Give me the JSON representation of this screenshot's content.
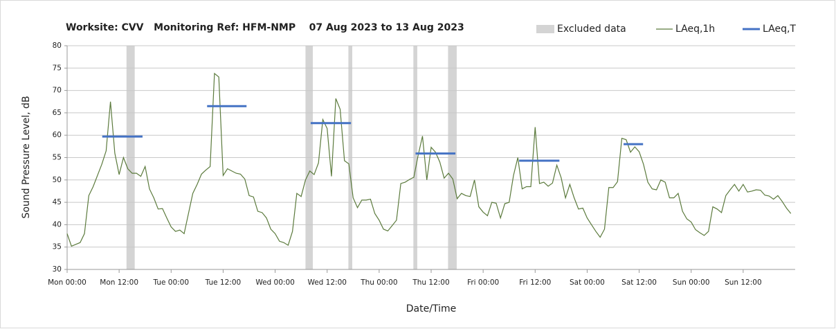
{
  "chart_data": {
    "type": "line",
    "title": "Worksite: CVV   Monitoring Ref: HFM-NMP    07 Aug 2023 to 13 Aug 2023",
    "x_label": "Date/Time",
    "y_label": "Sound Pressure Level, dB",
    "xlim": [
      0,
      168
    ],
    "xticks": [
      {
        "value": 0,
        "label": "Mon 00:00"
      },
      {
        "value": 12,
        "label": "Mon 12:00"
      },
      {
        "value": 24,
        "label": "Tue 00:00"
      },
      {
        "value": 36,
        "label": "Tue 12:00"
      },
      {
        "value": 48,
        "label": "Wed 00:00"
      },
      {
        "value": 60,
        "label": "Wed 12:00"
      },
      {
        "value": 72,
        "label": "Thu 00:00"
      },
      {
        "value": 84,
        "label": "Thu 12:00"
      },
      {
        "value": 96,
        "label": "Fri 00:00"
      },
      {
        "value": 108,
        "label": "Fri 12:00"
      },
      {
        "value": 120,
        "label": "Sat 00:00"
      },
      {
        "value": 132,
        "label": "Sat 12:00"
      },
      {
        "value": 144,
        "label": "Sun 00:00"
      },
      {
        "value": 156,
        "label": "Sun 12:00"
      }
    ],
    "ylim": [
      30,
      80
    ],
    "yticks": [
      30,
      35,
      40,
      45,
      50,
      55,
      60,
      65,
      70,
      75,
      80
    ],
    "grid": true,
    "legend": "top-right",
    "excluded_data": {
      "name": "Excluded data",
      "color": "#d4d4d4",
      "ranges": [
        [
          13.7,
          15.6
        ],
        [
          55,
          56.7
        ],
        [
          64.9,
          65.8
        ],
        [
          79.9,
          80.8
        ],
        [
          87.9,
          89.9
        ]
      ]
    },
    "series": [
      {
        "name": "LAeq,1h",
        "color": "#5b7a3c",
        "x": [
          0,
          1,
          2,
          3,
          4,
          5,
          6,
          7,
          8,
          9,
          10,
          11,
          12,
          13,
          14,
          15,
          16,
          17,
          18,
          19,
          20,
          21,
          22,
          23,
          24,
          25,
          26,
          27,
          28,
          29,
          30,
          31,
          32,
          33,
          34,
          35,
          36,
          37,
          38,
          39,
          40,
          41,
          42,
          43,
          44,
          45,
          46,
          47,
          48,
          49,
          50,
          51,
          52,
          53,
          54,
          55,
          56,
          57,
          58,
          59,
          60,
          61,
          62,
          63,
          64,
          65,
          66,
          67,
          68,
          69,
          70,
          71,
          72,
          73,
          74,
          75,
          76,
          77,
          78,
          79,
          80,
          81,
          82,
          83,
          84,
          85,
          86,
          87,
          88,
          89,
          90,
          91,
          92,
          93,
          94,
          95,
          96,
          97,
          98,
          99,
          100,
          101,
          102,
          103,
          104,
          105,
          106,
          107,
          108,
          109,
          110,
          111,
          112,
          113,
          114,
          115,
          116,
          117,
          118,
          119,
          120,
          121,
          122,
          123,
          124,
          125,
          126,
          127,
          128,
          129,
          130,
          131,
          132,
          133,
          134,
          135,
          136,
          137,
          138,
          139,
          140,
          141,
          142,
          143,
          144,
          145,
          146,
          147,
          148,
          149,
          150,
          151,
          152,
          153,
          154,
          155,
          156,
          157,
          158,
          159,
          160,
          161,
          162,
          163,
          164,
          165,
          166,
          167
        ],
        "values": [
          38,
          35.2,
          35.6,
          36,
          38,
          46.5,
          48.5,
          51,
          53.5,
          56.5,
          67.5,
          56,
          51.2,
          55,
          52.5,
          51.5,
          51.5,
          50.8,
          53,
          48,
          46,
          43.5,
          43.6,
          41.5,
          39.5,
          38.5,
          38.8,
          38,
          42.5,
          47,
          49,
          51.3,
          52.2,
          53,
          73.8,
          73,
          51,
          52.5,
          52,
          51.5,
          51.3,
          50.2,
          46.5,
          46.2,
          43,
          42.7,
          41.5,
          39,
          38,
          36.3,
          36,
          35.4,
          38.5,
          47,
          46.3,
          50,
          52,
          51.2,
          53.8,
          63.5,
          61.5,
          50.8,
          68.2,
          65.8,
          54.3,
          53.6,
          46,
          43.8,
          45.5,
          45.5,
          45.7,
          42.5,
          41,
          39,
          38.6,
          39.8,
          41,
          49.2,
          49.5,
          50.1,
          50.6,
          55.5,
          59.8,
          50,
          57.3,
          56.2,
          54,
          50.4,
          51.5,
          50.2,
          45.8,
          47,
          46.5,
          46.3,
          50,
          44,
          42.8,
          42,
          45,
          44.8,
          41.5,
          44.7,
          45,
          51,
          55,
          48,
          48.5,
          48.5,
          61.8,
          49.2,
          49.5,
          48.6,
          49.3,
          53.3,
          50.5,
          46,
          49,
          46,
          43.5,
          43.7,
          41.5,
          40,
          38.5,
          37.2,
          39,
          48.3,
          48.3,
          49.6,
          59.3,
          59,
          56.2,
          57.4,
          56.3,
          53.5,
          49.5,
          48,
          47.8,
          50,
          49.5,
          46,
          46,
          47,
          43,
          41.3,
          40.6,
          38.9,
          38.2,
          37.6,
          38.5,
          44,
          43.5,
          42.7,
          46.5,
          47.8,
          49,
          47.5,
          49,
          47.3,
          47.5,
          47.8,
          47.7,
          46.6,
          46.4,
          45.7,
          46.5,
          45.2,
          43.7,
          42.5
        ]
      },
      {
        "name": "LAeq,T",
        "color": "#4472c4",
        "segments": [
          {
            "start": 8.1,
            "end": 17.4,
            "value": 59.7
          },
          {
            "start": 32.3,
            "end": 41.4,
            "value": 66.5
          },
          {
            "start": 56.2,
            "end": 65.5,
            "value": 62.7
          },
          {
            "start": 80.4,
            "end": 89.6,
            "value": 55.9
          },
          {
            "start": 104.3,
            "end": 113.6,
            "value": 54.3
          },
          {
            "start": 128.4,
            "end": 132.9,
            "value": 58
          }
        ]
      }
    ]
  }
}
